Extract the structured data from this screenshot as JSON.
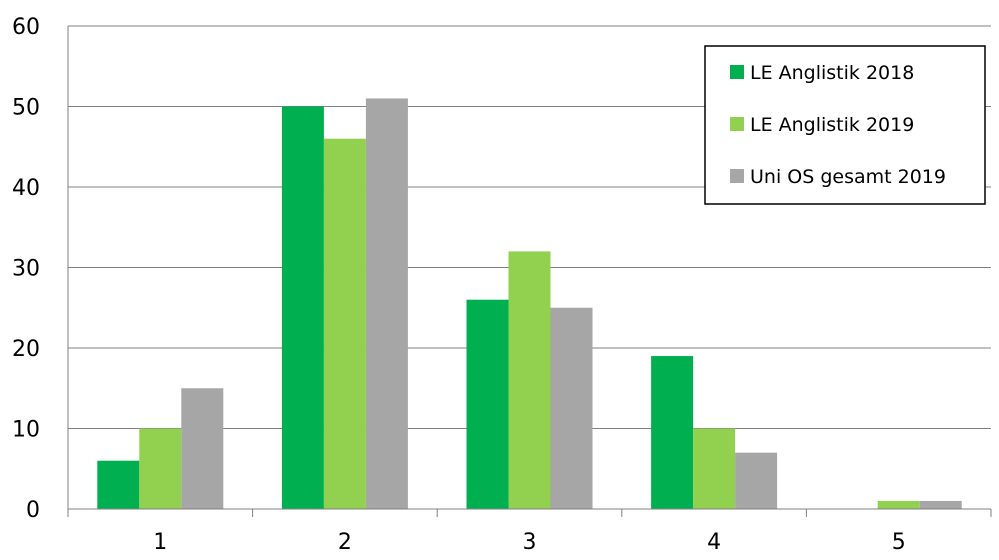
{
  "chart_data": {
    "type": "bar",
    "categories": [
      "1",
      "2",
      "3",
      "4",
      "5"
    ],
    "series": [
      {
        "name": "LE Anglistik 2018",
        "color": "#00b050",
        "values": [
          6,
          50,
          26,
          19,
          0
        ]
      },
      {
        "name": "LE Anglistik 2019",
        "color": "#92d050",
        "values": [
          10,
          46,
          32,
          10,
          1
        ]
      },
      {
        "name": "Uni OS gesamt 2019",
        "color": "#a6a6a6",
        "values": [
          15,
          51,
          25,
          7,
          1
        ]
      }
    ],
    "ylim": [
      0,
      60
    ],
    "yticks": [
      "0",
      "10",
      "20",
      "30",
      "40",
      "50",
      "60"
    ],
    "grid": true,
    "legend_position": "top-right",
    "title": "",
    "xlabel": "",
    "ylabel": ""
  }
}
